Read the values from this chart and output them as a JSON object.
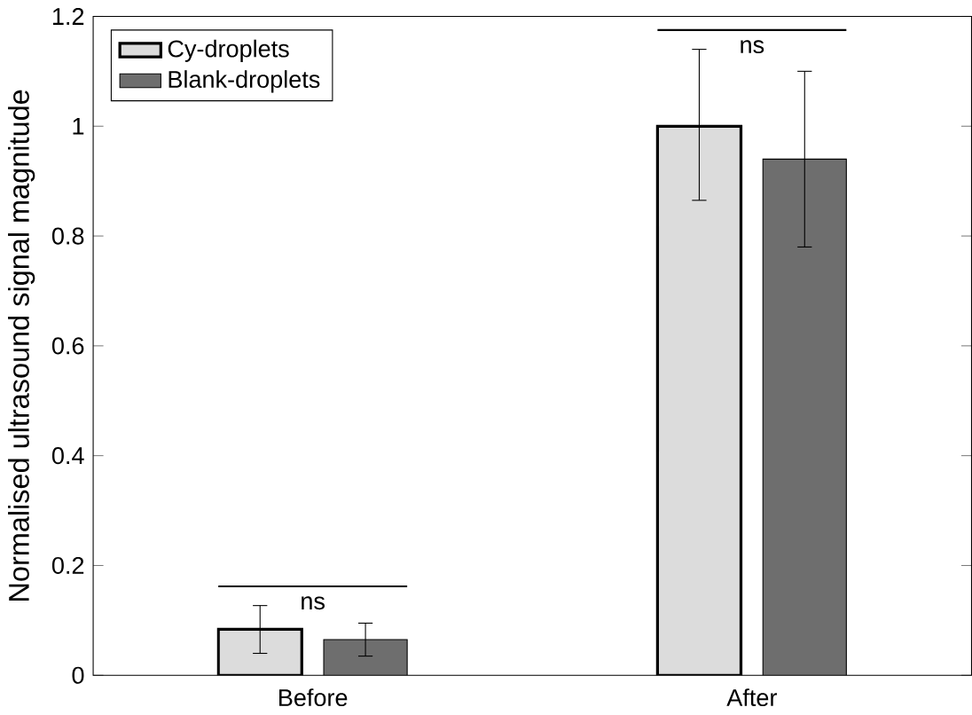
{
  "chart_data": {
    "type": "bar",
    "ylabel": "Normalised ultrasound signal magnitude",
    "categories": [
      "Before",
      "After"
    ],
    "series": [
      {
        "name": "Cy-droplets",
        "color": "#dcdcdc",
        "values": [
          0.084,
          1.0
        ],
        "errors": [
          [
            0.04,
            0.127
          ],
          [
            0.865,
            1.14
          ]
        ]
      },
      {
        "name": "Blank-droplets",
        "color": "#6e6e6e",
        "values": [
          0.065,
          0.94
        ],
        "errors": [
          [
            0.035,
            0.095
          ],
          [
            0.78,
            1.1
          ]
        ]
      }
    ],
    "ylim": [
      0,
      1.2
    ],
    "yticks": [
      0,
      0.2,
      0.4,
      0.6,
      0.8,
      1,
      1.2
    ],
    "legend": "top left",
    "annotations": [
      "ns",
      "ns"
    ]
  }
}
